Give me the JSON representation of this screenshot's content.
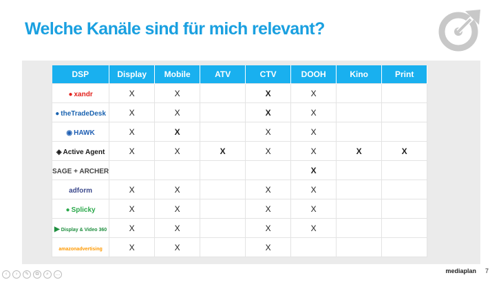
{
  "title": "Welche Kanäle sind für mich relevant?",
  "footer": {
    "brand": "mediaplan",
    "page": "7"
  },
  "table": {
    "columns": [
      "DSP",
      "Display",
      "Mobile",
      "ATV",
      "CTV",
      "DOOH",
      "Kino",
      "Print"
    ],
    "rows": [
      {
        "dsp": "xandr",
        "dsp_prefix": "●",
        "dsp_color": "#e2211c",
        "cells": [
          {
            "v": "X",
            "c": "black"
          },
          {
            "v": "X",
            "c": "black"
          },
          {
            "v": "",
            "c": "black"
          },
          {
            "v": "X",
            "c": "red"
          },
          {
            "v": "X",
            "c": "black"
          },
          {
            "v": "",
            "c": "black"
          },
          {
            "v": "",
            "c": "black"
          }
        ]
      },
      {
        "dsp": "theTradeDesk",
        "dsp_prefix": "●",
        "dsp_color": "#1a63b0",
        "cells": [
          {
            "v": "X",
            "c": "black"
          },
          {
            "v": "X",
            "c": "black"
          },
          {
            "v": "",
            "c": "black"
          },
          {
            "v": "X",
            "c": "red"
          },
          {
            "v": "X",
            "c": "black"
          },
          {
            "v": "",
            "c": "black"
          },
          {
            "v": "",
            "c": "black"
          }
        ]
      },
      {
        "dsp": "HAWK",
        "dsp_prefix": "◉",
        "dsp_color": "#1f5fb3",
        "cells": [
          {
            "v": "X",
            "c": "black"
          },
          {
            "v": "X",
            "c": "red"
          },
          {
            "v": "",
            "c": "black"
          },
          {
            "v": "X",
            "c": "black"
          },
          {
            "v": "X",
            "c": "black"
          },
          {
            "v": "",
            "c": "black"
          },
          {
            "v": "",
            "c": "black"
          }
        ]
      },
      {
        "dsp": "Active Agent",
        "dsp_prefix": "◈",
        "dsp_color": "#1a1a1a",
        "cells": [
          {
            "v": "X",
            "c": "black"
          },
          {
            "v": "X",
            "c": "black"
          },
          {
            "v": "X",
            "c": "red"
          },
          {
            "v": "X",
            "c": "black"
          },
          {
            "v": "X",
            "c": "black"
          },
          {
            "v": "X",
            "c": "red"
          },
          {
            "v": "X",
            "c": "red"
          }
        ]
      },
      {
        "dsp": "SAGE + ARCHER",
        "dsp_prefix": "",
        "dsp_color": "#444444",
        "cells": [
          {
            "v": "",
            "c": "black"
          },
          {
            "v": "",
            "c": "black"
          },
          {
            "v": "",
            "c": "black"
          },
          {
            "v": "",
            "c": "black"
          },
          {
            "v": "X",
            "c": "red"
          },
          {
            "v": "",
            "c": "black"
          },
          {
            "v": "",
            "c": "black"
          }
        ]
      },
      {
        "dsp": "adform",
        "dsp_prefix": "",
        "dsp_color": "#3d4a8c",
        "cells": [
          {
            "v": "X",
            "c": "black"
          },
          {
            "v": "X",
            "c": "black"
          },
          {
            "v": "",
            "c": "black"
          },
          {
            "v": "X",
            "c": "black"
          },
          {
            "v": "X",
            "c": "black"
          },
          {
            "v": "",
            "c": "black"
          },
          {
            "v": "",
            "c": "black"
          }
        ]
      },
      {
        "dsp": "Splicky",
        "dsp_prefix": "●",
        "dsp_color": "#2aa84a",
        "cells": [
          {
            "v": "X",
            "c": "black"
          },
          {
            "v": "X",
            "c": "black"
          },
          {
            "v": "",
            "c": "black"
          },
          {
            "v": "X",
            "c": "black"
          },
          {
            "v": "X",
            "c": "black"
          },
          {
            "v": "",
            "c": "black"
          },
          {
            "v": "",
            "c": "black"
          }
        ]
      },
      {
        "dsp": "Display & Video 360",
        "dsp_prefix": "▶",
        "dsp_color": "#1e8e3e",
        "cells": [
          {
            "v": "X",
            "c": "black"
          },
          {
            "v": "X",
            "c": "black"
          },
          {
            "v": "",
            "c": "black"
          },
          {
            "v": "X",
            "c": "black"
          },
          {
            "v": "X",
            "c": "black"
          },
          {
            "v": "",
            "c": "black"
          },
          {
            "v": "",
            "c": "black"
          }
        ]
      },
      {
        "dsp": "amazonadvertising",
        "dsp_prefix": "",
        "dsp_color": "#ff9900",
        "cells": [
          {
            "v": "X",
            "c": "black"
          },
          {
            "v": "X",
            "c": "black"
          },
          {
            "v": "",
            "c": "black"
          },
          {
            "v": "X",
            "c": "black"
          },
          {
            "v": "",
            "c": "black"
          },
          {
            "v": "",
            "c": "black"
          },
          {
            "v": "",
            "c": "black"
          }
        ]
      }
    ]
  },
  "colors": {
    "title": "#1aa0e0",
    "header": "#19b0ef",
    "red_x": "#e3120b",
    "panel": "#ebebeb"
  },
  "icons": {
    "logo": "target-arrow-icon",
    "controls": [
      "prev-icon",
      "next-icon",
      "pen-icon",
      "copy-icon",
      "zoom-icon",
      "more-icon"
    ]
  }
}
